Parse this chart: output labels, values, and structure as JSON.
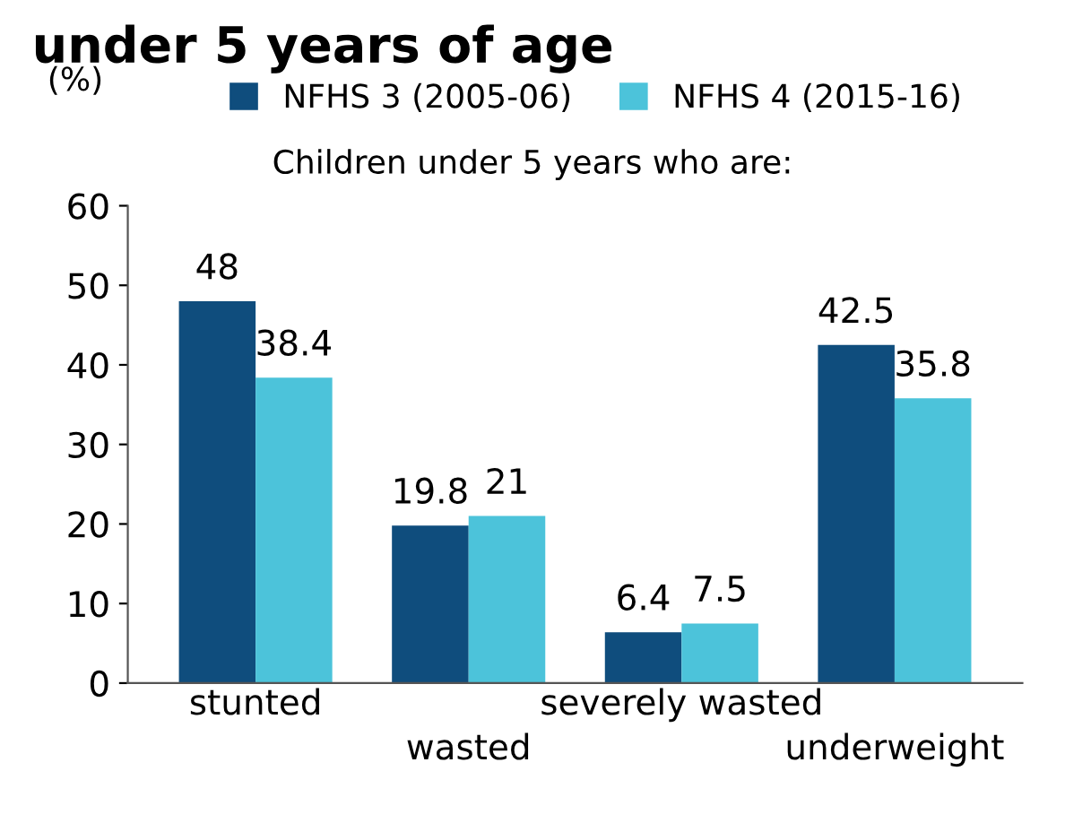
{
  "chart_data": {
    "type": "bar",
    "title": "under 5 years of age",
    "subtitle": "Children under 5 years who are:",
    "ylabel": "(%)",
    "categories": [
      "stunted",
      "wasted",
      "severely wasted",
      "underweight"
    ],
    "series": [
      {
        "name": "NFHS 3 (2005-06)",
        "color": "#0f4d7d",
        "values": [
          48,
          19.8,
          6.4,
          42.5
        ]
      },
      {
        "name": "NFHS 4 (2015-16)",
        "color": "#4cc3da",
        "values": [
          38.4,
          21,
          7.5,
          35.8
        ]
      }
    ],
    "ylim": [
      0,
      60
    ],
    "yticks": [
      0,
      10,
      20,
      30,
      40,
      50,
      60
    ],
    "data_labels": true,
    "grid": false,
    "legend": "top"
  }
}
